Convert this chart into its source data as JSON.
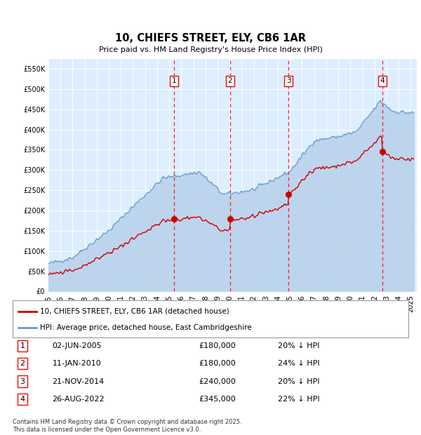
{
  "title": "10, CHIEFS STREET, ELY, CB6 1AR",
  "subtitle": "Price paid vs. HM Land Registry's House Price Index (HPI)",
  "ylim": [
    0,
    575000
  ],
  "yticks": [
    0,
    50000,
    100000,
    150000,
    200000,
    250000,
    300000,
    350000,
    400000,
    450000,
    500000,
    550000
  ],
  "background_color": "#ffffff",
  "plot_bg_color": "#ddeeff",
  "grid_color": "#ffffff",
  "legend_entry1": "10, CHIEFS STREET, ELY, CB6 1AR (detached house)",
  "legend_entry2": "HPI: Average price, detached house, East Cambridgeshire",
  "transactions": [
    {
      "num": 1,
      "date": "02-JUN-2005",
      "price": "£180,000",
      "hpi": "20% ↓ HPI",
      "year": 2005.42
    },
    {
      "num": 2,
      "date": "11-JAN-2010",
      "price": "£180,000",
      "hpi": "24% ↓ HPI",
      "year": 2010.03
    },
    {
      "num": 3,
      "date": "21-NOV-2014",
      "price": "£240,000",
      "hpi": "20% ↓ HPI",
      "year": 2014.89
    },
    {
      "num": 4,
      "date": "26-AUG-2022",
      "price": "£345,000",
      "hpi": "22% ↓ HPI",
      "year": 2022.65
    }
  ],
  "transaction_prices": [
    180000,
    180000,
    240000,
    345000
  ],
  "footnote": "Contains HM Land Registry data © Crown copyright and database right 2025.\nThis data is licensed under the Open Government Licence v3.0.",
  "red_line_color": "#cc0000",
  "blue_line_color": "#6699cc",
  "xmin": 1995.0,
  "xmax": 2025.5
}
